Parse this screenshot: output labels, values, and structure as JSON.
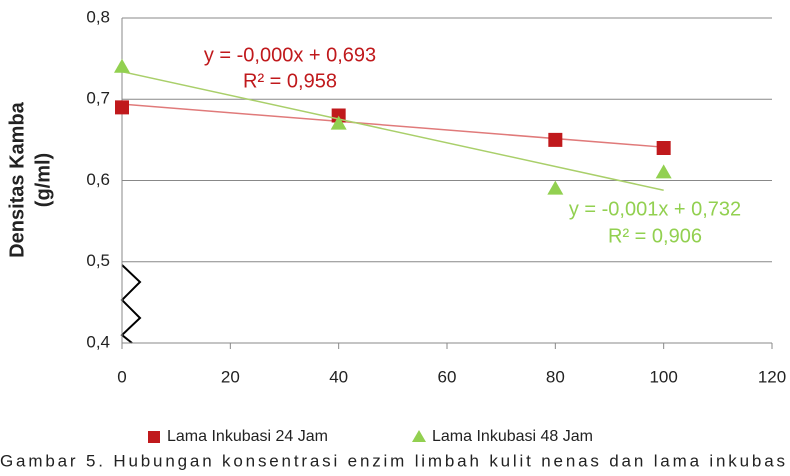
{
  "chart_data": {
    "type": "scatter",
    "y_label": [
      "Densitas Kamba",
      "(g/ml)"
    ],
    "x": [
      0,
      40,
      80,
      100
    ],
    "series": [
      {
        "name": "Lama Inkubasi 24 Jam",
        "color": "#c0191c",
        "marker": "square",
        "values": [
          0.69,
          0.68,
          0.65,
          0.64
        ],
        "trendline": {
          "x": [
            0,
            100
          ],
          "values": [
            0.694,
            0.641
          ],
          "color": "#e07a7a"
        },
        "equation": "y = -0,000x + 0,693",
        "r_squared": "R² = 0,958"
      },
      {
        "name": "Lama Inkubasi 48 Jam",
        "color": "#92d050",
        "marker": "triangle",
        "values": [
          0.74,
          0.67,
          0.59,
          0.61
        ],
        "trendline": {
          "x": [
            0,
            100
          ],
          "values": [
            0.734,
            0.588
          ],
          "color": "#a9cf6a"
        },
        "equation": "y = -0,001x + 0,732",
        "r_squared": "R² = 0,906"
      }
    ],
    "xlim": [
      0,
      120
    ],
    "xticks": [
      0,
      20,
      40,
      60,
      80,
      100,
      120
    ],
    "ylim": [
      0.4,
      0.8
    ],
    "yticks": [
      {
        "value": 0.4,
        "label": "0,4"
      },
      {
        "value": 0.5,
        "label": "0,5"
      },
      {
        "value": 0.6,
        "label": "0,6"
      },
      {
        "value": 0.7,
        "label": "0,7"
      },
      {
        "value": 0.8,
        "label": "0,8"
      }
    ],
    "grid": true,
    "legend": "bottom",
    "caption": "Gambar 5. Hubungan konsentrasi enzim limbah kulit nenas dan lama inkubas"
  }
}
